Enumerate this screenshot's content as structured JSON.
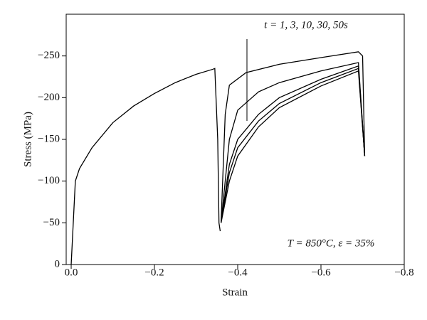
{
  "chart_data": {
    "type": "line",
    "xlabel": "Strain",
    "ylabel": "Stress (MPa)",
    "annotations": [
      "t = 1, 3, 10, 30, 50s",
      "T = 850°C, ε = 35%"
    ],
    "xlim": [
      0.012,
      -0.8
    ],
    "xticks": [
      {
        "value": 0,
        "label": "0.0"
      },
      {
        "value": -0.2,
        "label": "−0.2"
      },
      {
        "value": -0.4,
        "label": "−0.4"
      },
      {
        "value": -0.6,
        "label": "−0.6"
      },
      {
        "value": -0.8,
        "label": "−0.8"
      }
    ],
    "ylim": [
      0,
      -300
    ],
    "yticks": [
      0,
      {
        "value": -50,
        "label": "−50"
      },
      {
        "value": -100,
        "label": "−100"
      },
      {
        "value": -150,
        "label": "−150"
      },
      {
        "value": -200,
        "label": "−200"
      },
      {
        "value": -250,
        "label": "−250"
      }
    ],
    "series": [
      {
        "color": "#000000",
        "x": [
          0,
          -0.005,
          -0.01,
          -0.02,
          -0.05,
          -0.1,
          -0.15,
          -0.2,
          -0.25,
          -0.3,
          -0.34,
          -0.345,
          -0.352,
          -0.355,
          -0.358
        ],
        "values": [
          0,
          -50,
          -100,
          -115,
          -140,
          -170,
          -190,
          -205,
          -218,
          -228,
          -234,
          -235,
          -150,
          -50,
          -40
        ]
      },
      {
        "color": "#000000",
        "x": [
          -0.36,
          -0.37,
          -0.38,
          -0.42,
          -0.5,
          -0.6,
          -0.69,
          -0.7,
          -0.705
        ],
        "values": [
          -50,
          -180,
          -215,
          -230,
          -240,
          -248,
          -255,
          -250,
          -130
        ]
      },
      {
        "color": "#000000",
        "x": [
          -0.36,
          -0.38,
          -0.4,
          -0.45,
          -0.5,
          -0.6,
          -0.69,
          -0.705
        ],
        "values": [
          -50,
          -150,
          -185,
          -207,
          -218,
          -232,
          -242,
          -130
        ]
      },
      {
        "color": "#000000",
        "x": [
          -0.36,
          -0.38,
          -0.4,
          -0.45,
          -0.5,
          -0.6,
          -0.69,
          -0.705
        ],
        "values": [
          -50,
          -120,
          -150,
          -180,
          -200,
          -222,
          -238,
          -130
        ]
      },
      {
        "color": "#000000",
        "x": [
          -0.36,
          -0.38,
          -0.4,
          -0.45,
          -0.5,
          -0.6,
          -0.69,
          -0.705
        ],
        "values": [
          -50,
          -110,
          -140,
          -172,
          -193,
          -218,
          -235,
          -130
        ]
      },
      {
        "color": "#000000",
        "x": [
          -0.36,
          -0.38,
          -0.4,
          -0.45,
          -0.5,
          -0.6,
          -0.69,
          -0.705
        ],
        "values": [
          -50,
          -100,
          -130,
          -165,
          -188,
          -214,
          -232,
          -130
        ]
      }
    ]
  }
}
